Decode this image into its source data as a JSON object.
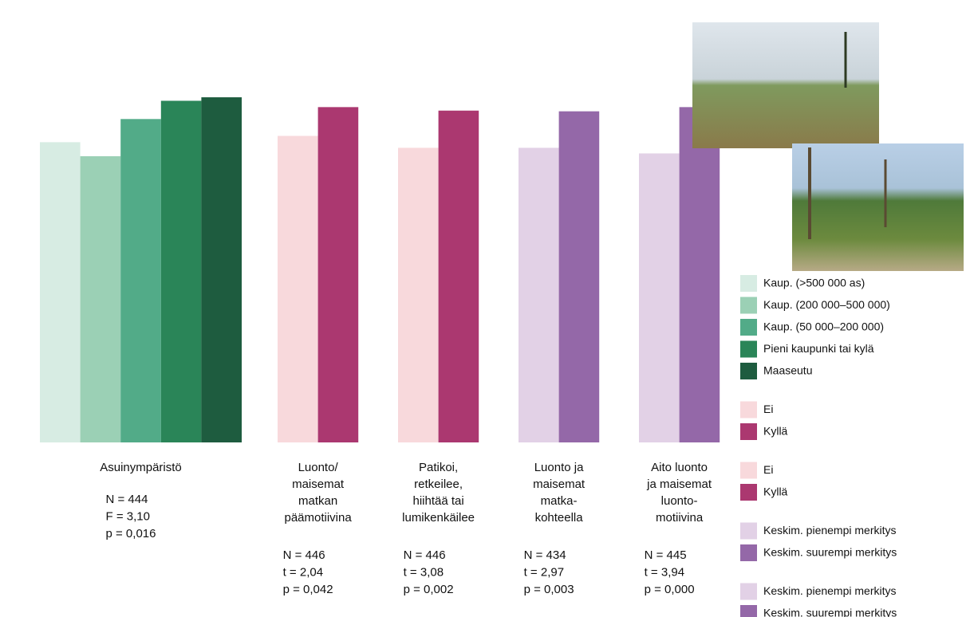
{
  "chart_data": {
    "type": "bar",
    "ylim": [
      1,
      7
    ],
    "yticks": [
      1,
      2,
      3,
      4,
      5,
      6,
      7
    ],
    "grid": true,
    "groups": [
      {
        "label": [
          "Asuinympäristö"
        ],
        "stats": [
          "N = 444",
          "F = 3,10",
          "p = 0,016"
        ],
        "series": [
          {
            "name": "Kaup. (>500 000 as)",
            "color": "#d7ece3",
            "value": 5.28
          },
          {
            "name": "Kaup. (200 000–500 000)",
            "color": "#9bd0b5",
            "value": 5.08
          },
          {
            "name": "Kaup. (50 000–200 000)",
            "color": "#52ab88",
            "value": 5.61
          },
          {
            "name": "Pieni kaupunki tai kylä",
            "color": "#2a8558",
            "value": 5.87
          },
          {
            "name": "Maaseutu",
            "color": "#1e5c3f",
            "value": 5.92
          }
        ]
      },
      {
        "label": [
          "Luonto/",
          "maisemat",
          "matkan",
          "päämotiivina"
        ],
        "stats": [
          "N = 446",
          "t = 2,04",
          "p = 0,042"
        ],
        "series": [
          {
            "name": "Ei",
            "color": "#f8d9dc",
            "value": 5.37
          },
          {
            "name": "Kyllä",
            "color": "#ab3870",
            "value": 5.78
          }
        ]
      },
      {
        "label": [
          "Patikoi,",
          "retkeilee,",
          "hiihtää tai",
          "lumikenkäilee"
        ],
        "stats": [
          "N = 446",
          "t = 3,08",
          "p = 0,002"
        ],
        "series": [
          {
            "name": "Ei",
            "color": "#f8d9dc",
            "value": 5.2
          },
          {
            "name": "Kyllä",
            "color": "#ab3870",
            "value": 5.73
          }
        ]
      },
      {
        "label": [
          "Luonto ja",
          "maisemat",
          "matka-",
          "kohteella"
        ],
        "stats": [
          "N = 434",
          "t = 2,97",
          "p = 0,003"
        ],
        "series": [
          {
            "name": "Keskim. pienempi merkitys",
            "color": "#e2d1e6",
            "value": 5.2
          },
          {
            "name": "Keskim. suurempi merkitys",
            "color": "#9468a8",
            "value": 5.72
          }
        ]
      },
      {
        "label": [
          "Aito luonto",
          "ja maisemat",
          "luonto-",
          "motiivina"
        ],
        "stats": [
          "N = 445",
          "t = 3,94",
          "p = 0,000"
        ],
        "series": [
          {
            "name": "Keskim. pienempi merkitys",
            "color": "#e2d1e6",
            "value": 5.12
          },
          {
            "name": "Keskim. suurempi merkitys",
            "color": "#9468a8",
            "value": 5.78
          }
        ]
      }
    ]
  }
}
